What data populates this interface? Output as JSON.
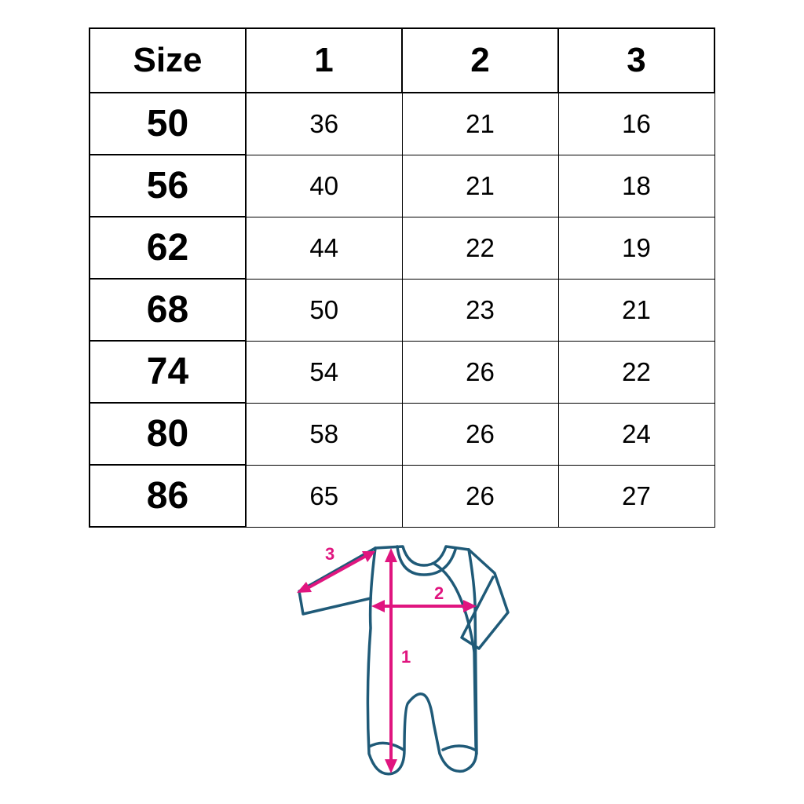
{
  "table": {
    "headers": [
      "Size",
      "1",
      "2",
      "3"
    ],
    "rows": [
      [
        "50",
        "36",
        "21",
        "16"
      ],
      [
        "56",
        "40",
        "21",
        "18"
      ],
      [
        "62",
        "44",
        "22",
        "19"
      ],
      [
        "68",
        "50",
        "23",
        "21"
      ],
      [
        "74",
        "54",
        "26",
        "22"
      ],
      [
        "80",
        "58",
        "26",
        "24"
      ],
      [
        "86",
        "65",
        "26",
        "27"
      ]
    ]
  },
  "diagram": {
    "labels": [
      "1",
      "2",
      "3"
    ],
    "outline_color": "#1f5a78",
    "arrow_color": "#e0157f"
  }
}
